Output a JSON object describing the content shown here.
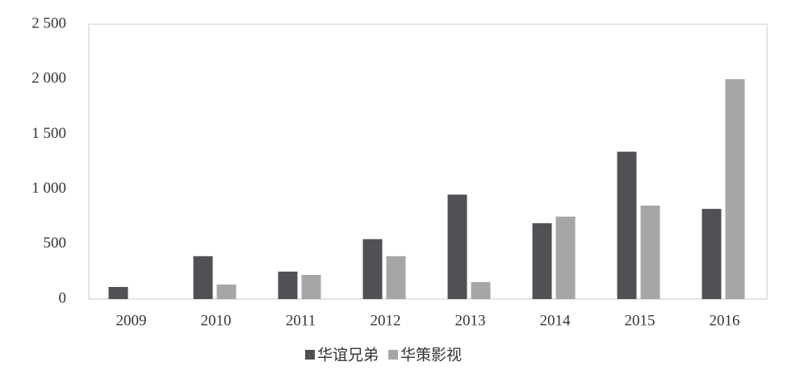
{
  "chart_data": {
    "type": "bar",
    "categories": [
      "2009",
      "2010",
      "2011",
      "2012",
      "2013",
      "2014",
      "2015",
      "2016"
    ],
    "series": [
      {
        "name": "华谊兄弟",
        "color": "#505055",
        "values": [
          110,
          390,
          250,
          545,
          950,
          690,
          1340,
          820
        ]
      },
      {
        "name": "华策影视",
        "color": "#a6a6a6",
        "values": [
          0,
          132,
          220,
          390,
          155,
          750,
          850,
          2000
        ]
      }
    ],
    "ylim": [
      0,
      2500
    ],
    "yticks": [
      0,
      500,
      {
        "value": 1000,
        "label": "1 000"
      },
      {
        "value": 1500,
        "label": "1 500"
      },
      {
        "value": 2000,
        "label": "2 000"
      },
      {
        "value": 2500,
        "label": "2 500"
      }
    ],
    "grid": false,
    "legend": "bottom"
  }
}
